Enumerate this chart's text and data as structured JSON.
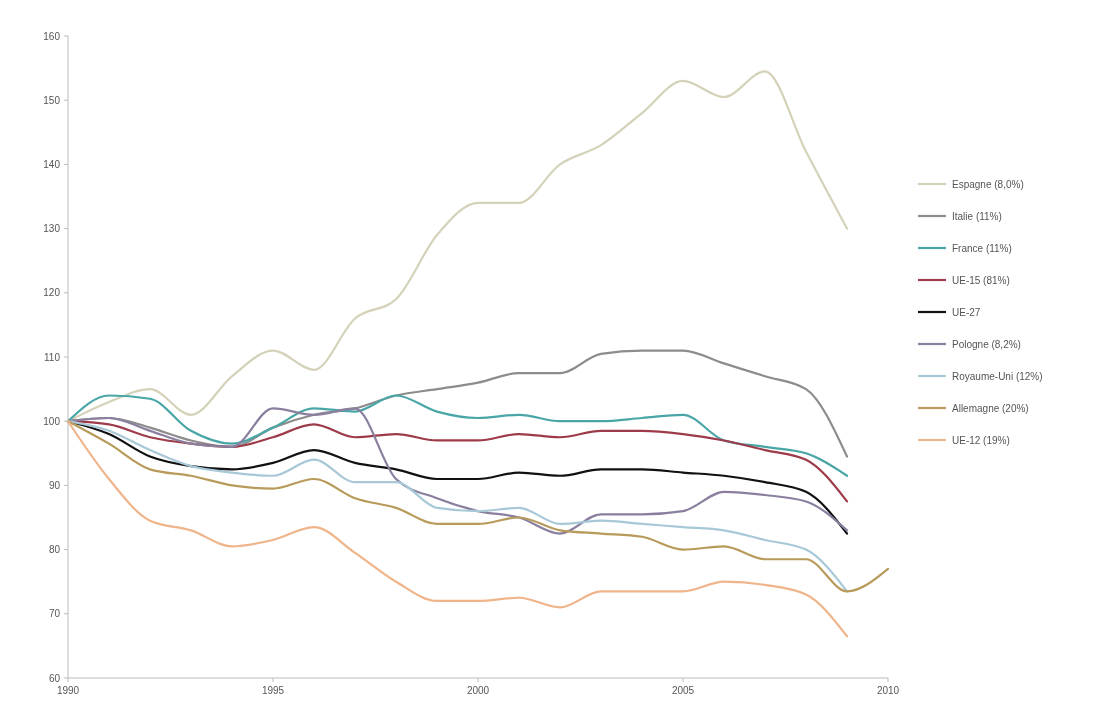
{
  "chart_data": {
    "type": "line",
    "x": [
      1990,
      1991,
      1992,
      1993,
      1994,
      1995,
      1996,
      1997,
      1998,
      1999,
      2000,
      2001,
      2002,
      2003,
      2004,
      2005,
      2006,
      2007,
      2008,
      2009
    ],
    "xlim": [
      1990,
      2010
    ],
    "xticks": [
      1990,
      1995,
      2000,
      2005,
      2010
    ],
    "ylim": [
      60,
      160
    ],
    "yticks": [
      60,
      70,
      80,
      90,
      100,
      110,
      120,
      130,
      140,
      150,
      160
    ],
    "grid": false,
    "legend": "right",
    "line_style": "solid",
    "marker": "none",
    "series": [
      {
        "name": "Espagne (8,0%)",
        "color": "#d4d2b8",
        "values": [
          100,
          103,
          105,
          101,
          107,
          111,
          108,
          116,
          119,
          129,
          134,
          134,
          140,
          143,
          148,
          153,
          150.5,
          154.5,
          142,
          130
        ]
      },
      {
        "name": "Italie (11%)",
        "color": "#8c8c8c",
        "values": [
          100,
          100.5,
          99,
          97,
          96,
          99,
          101,
          102,
          104,
          105,
          106,
          107.5,
          107.5,
          110.5,
          111,
          111,
          109,
          107,
          105,
          94.5
        ]
      },
      {
        "name": "France (11%)",
        "color": "#4aa6a6",
        "values": [
          100,
          104,
          103.5,
          98.5,
          96.5,
          99,
          102,
          101.5,
          104,
          101.5,
          100.5,
          101,
          100,
          100,
          100.5,
          101,
          97,
          96,
          95,
          91.5
        ]
      },
      {
        "name": "UE-15 (81%)",
        "color": "#9e3b4a",
        "values": [
          100,
          99.5,
          97.5,
          96.5,
          96,
          97.5,
          99.5,
          97.5,
          98,
          97,
          97,
          98,
          97.5,
          98.5,
          98.5,
          98,
          97,
          95.5,
          94,
          87.5
        ]
      },
      {
        "name": "UE-27",
        "color": "#111111",
        "values": [
          100,
          98,
          94.5,
          93,
          92.5,
          93.5,
          95.5,
          93.5,
          92.5,
          91,
          91,
          92,
          91.5,
          92.5,
          92.5,
          92,
          91.5,
          90.5,
          89,
          82.5
        ]
      },
      {
        "name": "Pologne (8,2%)",
        "color": "#8a7f9e",
        "values": [
          100,
          100.5,
          98.5,
          96.5,
          96,
          102,
          101,
          102,
          91,
          88,
          86,
          85,
          82.5,
          85.5,
          85.5,
          86,
          89,
          88.5,
          87.5,
          83
        ]
      },
      {
        "name": "Royaume-Uni (12%)",
        "color": "#a8c8d8",
        "values": [
          100,
          98.5,
          95.5,
          93,
          92,
          91.5,
          94,
          90.5,
          90.5,
          86.5,
          86,
          86.5,
          84,
          84.5,
          84,
          83.5,
          83,
          81.5,
          80,
          73.5
        ]
      },
      {
        "name": "Allemagne (20%)",
        "color": "#b89a5a",
        "x": [
          1990,
          1991,
          1992,
          1993,
          1994,
          1995,
          1996,
          1997,
          1998,
          1999,
          2000,
          2001,
          2002,
          2003,
          2004,
          2005,
          2006,
          2007,
          2008,
          2009,
          2010
        ],
        "values": [
          100,
          96.5,
          92.5,
          91.5,
          90,
          89.5,
          91,
          88,
          86.5,
          84,
          84,
          85,
          83,
          82.5,
          82,
          80,
          80.5,
          78.5,
          78.5,
          73.5,
          77
        ]
      },
      {
        "name": "UE-12 (19%)",
        "color": "#f0b48a",
        "values": [
          100,
          91,
          84.5,
          83,
          80.5,
          81.5,
          83.5,
          79.5,
          75,
          72,
          72,
          72.5,
          71,
          73.5,
          73.5,
          73.5,
          75,
          74.5,
          73,
          66.5
        ]
      }
    ]
  }
}
